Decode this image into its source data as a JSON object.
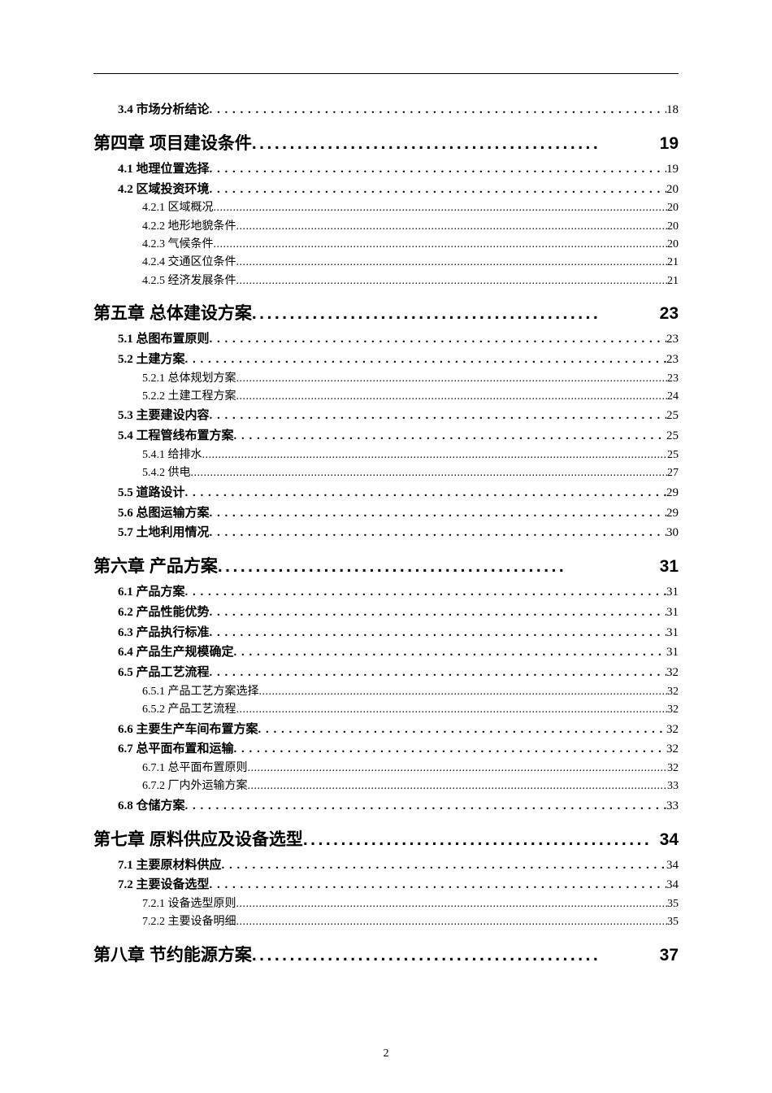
{
  "page_number": "2",
  "dots_heavy": "..............................................",
  "dots_medium": ". . . . . . . . . . . . . . . . . . . . . . . . . . . . . . . . . . . . . . . . . . . . . . . . . . . . . . . . . . . . . . . . . . . . . . . . . . . . . . . . . . . . . . . . . . . . . . . . .",
  "dots_light": "..........................................................................................................................................................................",
  "toc": [
    {
      "level": "section",
      "label": "3.4 市场分析结论",
      "page": "18"
    },
    {
      "level": "chapter",
      "label": "第四章 项目建设条件",
      "page": "19"
    },
    {
      "level": "section",
      "label": "4.1 地理位置选择",
      "page": "19"
    },
    {
      "level": "section",
      "label": "4.2 区域投资环境",
      "page": "20"
    },
    {
      "level": "sub",
      "label": "4.2.1 区域概况",
      "page": "20"
    },
    {
      "level": "sub",
      "label": "4.2.2 地形地貌条件",
      "page": "20"
    },
    {
      "level": "sub",
      "label": "4.2.3 气候条件",
      "page": "20"
    },
    {
      "level": "sub",
      "label": "4.2.4 交通区位条件",
      "page": "21"
    },
    {
      "level": "sub",
      "label": "4.2.5 经济发展条件",
      "page": "21"
    },
    {
      "level": "chapter",
      "label": "第五章 总体建设方案",
      "page": "23"
    },
    {
      "level": "section",
      "label": "5.1 总图布置原则",
      "page": "23"
    },
    {
      "level": "section",
      "label": "5.2 土建方案",
      "page": "23"
    },
    {
      "level": "sub",
      "label": "5.2.1 总体规划方案",
      "page": "23"
    },
    {
      "level": "sub",
      "label": "5.2.2 土建工程方案",
      "page": "24"
    },
    {
      "level": "section",
      "label": "5.3 主要建设内容",
      "page": "25"
    },
    {
      "level": "section",
      "label": "5.4 工程管线布置方案",
      "page": "25"
    },
    {
      "level": "sub",
      "label": "5.4.1 给排水",
      "page": "25"
    },
    {
      "level": "sub",
      "label": "5.4.2 供电",
      "page": "27"
    },
    {
      "level": "section",
      "label": "5.5 道路设计",
      "page": "29"
    },
    {
      "level": "section",
      "label": "5.6 总图运输方案",
      "page": "29"
    },
    {
      "level": "section",
      "label": "5.7 土地利用情况",
      "page": "30"
    },
    {
      "level": "chapter",
      "label": "第六章 产品方案",
      "page": "31"
    },
    {
      "level": "section",
      "label": "6.1 产品方案",
      "page": "31"
    },
    {
      "level": "section",
      "label": "6.2 产品性能优势",
      "page": "31"
    },
    {
      "level": "section",
      "label": "6.3 产品执行标准",
      "page": "31"
    },
    {
      "level": "section",
      "label": "6.4 产品生产规模确定",
      "page": "31"
    },
    {
      "level": "section",
      "label": "6.5 产品工艺流程",
      "page": "32"
    },
    {
      "level": "sub",
      "label": "6.5.1 产品工艺方案选择",
      "page": "32"
    },
    {
      "level": "sub",
      "label": "6.5.2 产品工艺流程",
      "page": "32"
    },
    {
      "level": "section",
      "label": "6.6 主要生产车间布置方案",
      "page": "32"
    },
    {
      "level": "section",
      "label": "6.7 总平面布置和运输",
      "page": "32"
    },
    {
      "level": "sub",
      "label": "6.7.1 总平面布置原则",
      "page": "32"
    },
    {
      "level": "sub",
      "label": "6.7.2 厂内外运输方案",
      "page": "33"
    },
    {
      "level": "section",
      "label": "6.8 仓储方案",
      "page": "33"
    },
    {
      "level": "chapter",
      "label": "第七章 原料供应及设备选型",
      "page": "34"
    },
    {
      "level": "section",
      "label": "7.1 主要原材料供应",
      "page": "34"
    },
    {
      "level": "section",
      "label": "7.2 主要设备选型",
      "page": "34"
    },
    {
      "level": "sub",
      "label": "7.2.1 设备选型原则",
      "page": "35"
    },
    {
      "level": "sub",
      "label": "7.2.2 主要设备明细",
      "page": "35"
    },
    {
      "level": "chapter",
      "label": "第八章 节约能源方案",
      "page": "37"
    }
  ]
}
